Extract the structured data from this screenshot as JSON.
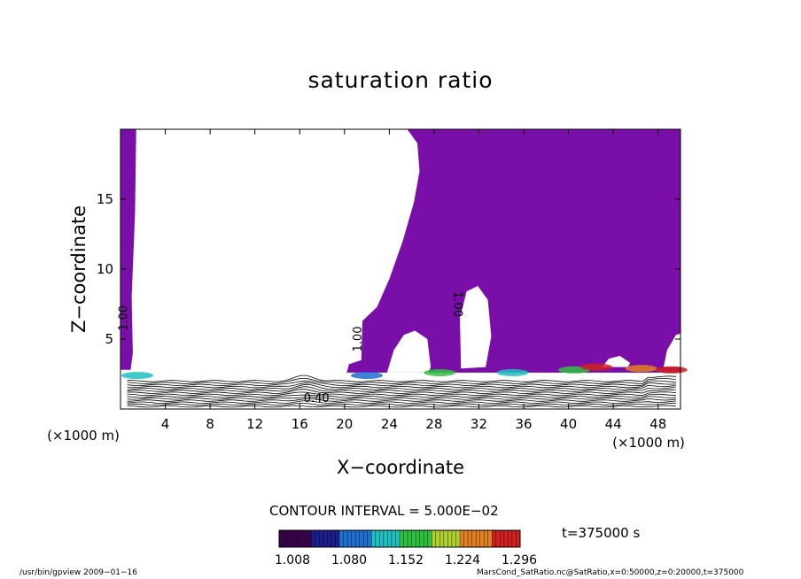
{
  "chart_data": {
    "type": "contour",
    "title": "saturation ratio",
    "xlabel": "X−coordinate",
    "ylabel": "Z−coordinate",
    "x_unit": "(×1000 m)",
    "y_unit": "(×1000 m)",
    "xlim": [
      0,
      50
    ],
    "ylim": [
      0,
      20
    ],
    "x_ticks": [
      4,
      8,
      12,
      16,
      20,
      24,
      28,
      32,
      36,
      40,
      44,
      48
    ],
    "y_ticks": [
      5,
      10,
      15
    ],
    "contour_labels": [
      {
        "text": "1.00",
        "x": 0.6,
        "y": 6.5
      },
      {
        "text": "1.00",
        "x": 21.5,
        "y": 5.0
      },
      {
        "text": "1.00",
        "x": 29.8,
        "y": 7.5
      },
      {
        "text": "0.40",
        "x": 17.5,
        "y": 0.5
      }
    ],
    "colorbar": {
      "ticks": [
        "1.008",
        "1.080",
        "1.152",
        "1.224",
        "1.296"
      ],
      "colors": [
        "#3a004a",
        "#1a1f8a",
        "#1f6fd0",
        "#20c0c0",
        "#30c040",
        "#b0d030",
        "#e08020",
        "#d02020"
      ]
    },
    "fill_color": "#7a0ea8"
  },
  "contour_interval": "CONTOUR INTERVAL = 5.000E−02",
  "time_label": "t=375000 s",
  "footer_left": "/usr/bin/gpview   2009−01−16",
  "footer_right": "MarsCond_SatRatio.nc@SatRatio,x=0:50000,z=0:20000,t=375000"
}
